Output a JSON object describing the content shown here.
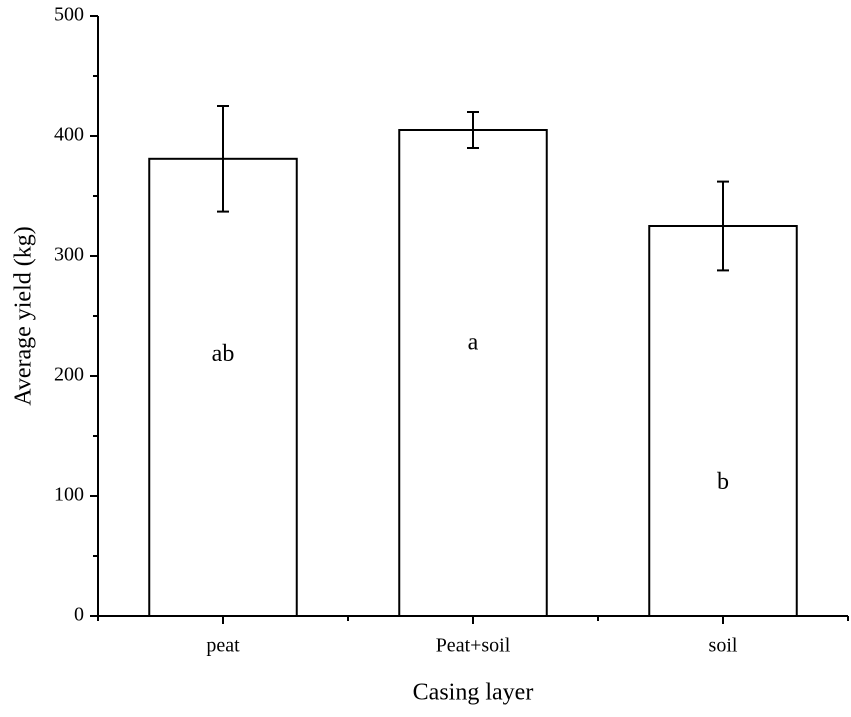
{
  "chart_data": {
    "type": "bar",
    "xlabel": "Casing layer",
    "ylabel": "Average yield (kg)",
    "categories": [
      "peat",
      "Peat+soil",
      "soil"
    ],
    "values": [
      381,
      405,
      325
    ],
    "errors": [
      44,
      15,
      37
    ],
    "annotations": [
      "ab",
      "a",
      "b"
    ],
    "color": "#ffffff",
    "ylim": [
      0,
      500
    ],
    "yticks": [
      0,
      100,
      200,
      300,
      400,
      500
    ],
    "grid": false
  }
}
